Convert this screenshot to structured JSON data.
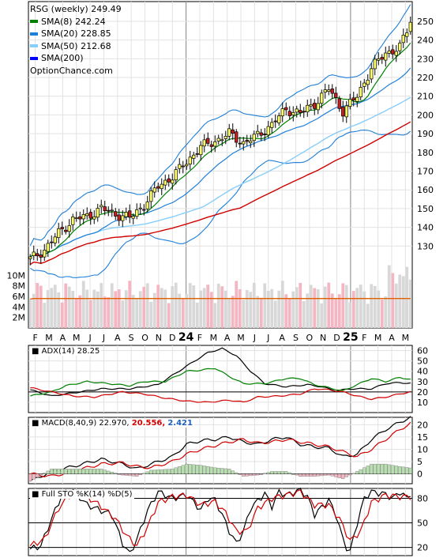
{
  "chart_data": [
    {
      "type": "candlestick",
      "title": "RSG (weekly) 249.49",
      "watermark": "OptionChance.com",
      "legend": [
        {
          "label": "SMA(8) 242.24",
          "color": "#008000"
        },
        {
          "label": "SMA(20) 228.85",
          "color": "#1e7fd8"
        },
        {
          "label": "SMA(50) 212.68",
          "color": "#87cefa"
        },
        {
          "label": "SMA(200)",
          "color": "#0000ff"
        }
      ],
      "ylim": [
        120,
        258
      ],
      "yticks": [
        130,
        140,
        150,
        160,
        170,
        180,
        190,
        200,
        210,
        220,
        230,
        240,
        250
      ],
      "x_labels": [
        "F",
        "M",
        "A",
        "M",
        "J",
        "J",
        "A",
        "S",
        "O",
        "N",
        "D",
        "24",
        "F",
        "M",
        "A",
        "M",
        "J",
        "J",
        "A",
        "S",
        "O",
        "N",
        "D",
        "25",
        "F",
        "M",
        "A",
        "M"
      ],
      "close_anchors": [
        [
          0,
          123
        ],
        [
          4,
          128
        ],
        [
          8,
          137
        ],
        [
          12,
          144
        ],
        [
          16,
          146
        ],
        [
          20,
          150
        ],
        [
          24,
          147
        ],
        [
          28,
          145
        ],
        [
          32,
          152
        ],
        [
          36,
          162
        ],
        [
          40,
          167
        ],
        [
          44,
          175
        ],
        [
          48,
          183
        ],
        [
          52,
          186
        ],
        [
          56,
          190
        ],
        [
          60,
          185
        ],
        [
          64,
          189
        ],
        [
          68,
          195
        ],
        [
          72,
          203
        ],
        [
          76,
          201
        ],
        [
          80,
          206
        ],
        [
          84,
          214
        ],
        [
          88,
          202
        ],
        [
          92,
          210
        ],
        [
          96,
          225
        ],
        [
          100,
          233
        ],
        [
          104,
          236
        ],
        [
          107,
          249.49
        ]
      ],
      "volume": {
        "yticks_label": [
          "10M",
          "8M",
          "6M",
          "4M",
          "2M"
        ],
        "yticks": [
          10,
          8,
          6,
          4,
          2
        ],
        "ylim": [
          0,
          12
        ],
        "avg_line_color": "#e06000"
      }
    },
    {
      "type": "line",
      "title": "ADX(14) 28.25",
      "ylim": [
        0,
        65
      ],
      "yticks": [
        10,
        20,
        30,
        40,
        50,
        60
      ],
      "hlines": [
        20
      ],
      "series": [
        {
          "color": "#000000",
          "anchors": [
            [
              0,
              22
            ],
            [
              6,
              16
            ],
            [
              12,
              19
            ],
            [
              20,
              23
            ],
            [
              28,
              23
            ],
            [
              36,
              27
            ],
            [
              44,
              45
            ],
            [
              50,
              58
            ],
            [
              54,
              62
            ],
            [
              58,
              55
            ],
            [
              62,
              40
            ],
            [
              66,
              28
            ],
            [
              72,
              25
            ],
            [
              78,
              27
            ],
            [
              82,
              25
            ],
            [
              86,
              21
            ],
            [
              90,
              23
            ],
            [
              96,
              23
            ],
            [
              100,
              28
            ],
            [
              104,
              29
            ],
            [
              107,
              28.25
            ]
          ]
        },
        {
          "color": "#008000",
          "anchors": [
            [
              0,
              16
            ],
            [
              6,
              20
            ],
            [
              10,
              26
            ],
            [
              16,
              30
            ],
            [
              22,
              28
            ],
            [
              28,
              26
            ],
            [
              32,
              30
            ],
            [
              38,
              30
            ],
            [
              44,
              40
            ],
            [
              48,
              41
            ],
            [
              52,
              43
            ],
            [
              56,
              35
            ],
            [
              60,
              28
            ],
            [
              66,
              28
            ],
            [
              72,
              33
            ],
            [
              76,
              33
            ],
            [
              80,
              27
            ],
            [
              84,
              24
            ],
            [
              88,
              21
            ],
            [
              92,
              27
            ],
            [
              96,
              33
            ],
            [
              100,
              30
            ],
            [
              104,
              34
            ],
            [
              107,
              32
            ]
          ]
        },
        {
          "color": "#d00000",
          "anchors": [
            [
              0,
              24
            ],
            [
              6,
              20
            ],
            [
              12,
              16
            ],
            [
              18,
              15
            ],
            [
              26,
              20
            ],
            [
              32,
              18
            ],
            [
              38,
              14
            ],
            [
              44,
              11
            ],
            [
              50,
              10
            ],
            [
              56,
              12
            ],
            [
              60,
              10
            ],
            [
              64,
              15
            ],
            [
              70,
              16
            ],
            [
              76,
              18
            ],
            [
              80,
              23
            ],
            [
              84,
              22
            ],
            [
              88,
              20
            ],
            [
              92,
              16
            ],
            [
              96,
              13
            ],
            [
              100,
              15
            ],
            [
              104,
              18
            ],
            [
              107,
              20
            ]
          ]
        }
      ]
    },
    {
      "type": "line",
      "title": "MACD(8,40,9) 22.970,",
      "signal_label": "20.556,",
      "hist_label": "2.421",
      "ylim": [
        -4,
        23
      ],
      "yticks": [
        0,
        5,
        10,
        15,
        20
      ],
      "hlines": [
        0
      ],
      "series": [
        {
          "color": "#000000",
          "anchors": [
            [
              0,
              -3
            ],
            [
              6,
              1
            ],
            [
              12,
              3
            ],
            [
              20,
              6
            ],
            [
              26,
              4
            ],
            [
              30,
              2
            ],
            [
              34,
              4
            ],
            [
              40,
              7
            ],
            [
              44,
              12
            ],
            [
              48,
              13.5
            ],
            [
              52,
              14
            ],
            [
              56,
              15
            ],
            [
              60,
              13
            ],
            [
              64,
              12
            ],
            [
              68,
              14
            ],
            [
              72,
              15
            ],
            [
              76,
              12
            ],
            [
              80,
              11
            ],
            [
              84,
              10.5
            ],
            [
              88,
              7
            ],
            [
              92,
              8
            ],
            [
              96,
              14
            ],
            [
              100,
              18
            ],
            [
              104,
              21
            ],
            [
              107,
              22.97
            ]
          ]
        },
        {
          "color": "#d00000",
          "anchors": [
            [
              0,
              0
            ],
            [
              6,
              -1
            ],
            [
              12,
              1
            ],
            [
              20,
              4
            ],
            [
              26,
              4.5
            ],
            [
              30,
              3
            ],
            [
              34,
              2.5
            ],
            [
              40,
              5
            ],
            [
              44,
              8
            ],
            [
              48,
              10
            ],
            [
              52,
              11.5
            ],
            [
              56,
              13
            ],
            [
              60,
              14
            ],
            [
              64,
              12.5
            ],
            [
              68,
              13
            ],
            [
              72,
              14
            ],
            [
              76,
              13
            ],
            [
              80,
              12
            ],
            [
              84,
              11
            ],
            [
              88,
              9
            ],
            [
              92,
              7
            ],
            [
              96,
              10
            ],
            [
              100,
              14
            ],
            [
              104,
              18
            ],
            [
              107,
              20.556
            ]
          ]
        }
      ]
    },
    {
      "type": "line",
      "title": "Full STO %K(14) %D(5)",
      "ylim": [
        10,
        92
      ],
      "yticks": [
        20,
        50,
        80
      ],
      "hlines": [
        20,
        50,
        80
      ],
      "series": [
        {
          "color": "#000000",
          "anchors": [
            [
              0,
              18
            ],
            [
              3,
              22
            ],
            [
              6,
              55
            ],
            [
              9,
              85
            ],
            [
              12,
              90
            ],
            [
              16,
              72
            ],
            [
              20,
              65
            ],
            [
              23,
              60
            ],
            [
              26,
              25
            ],
            [
              28,
              12
            ],
            [
              30,
              30
            ],
            [
              33,
              65
            ],
            [
              36,
              88
            ],
            [
              40,
              80
            ],
            [
              44,
              84
            ],
            [
              48,
              66
            ],
            [
              50,
              80
            ],
            [
              52,
              78
            ],
            [
              54,
              60
            ],
            [
              56,
              40
            ],
            [
              58,
              25
            ],
            [
              60,
              40
            ],
            [
              62,
              68
            ],
            [
              66,
              86
            ],
            [
              68,
              70
            ],
            [
              70,
              88
            ],
            [
              72,
              84
            ],
            [
              76,
              90
            ],
            [
              78,
              82
            ],
            [
              80,
              60
            ],
            [
              84,
              78
            ],
            [
              86,
              60
            ],
            [
              88,
              30
            ],
            [
              89,
              20
            ],
            [
              90,
              15
            ],
            [
              92,
              50
            ],
            [
              94,
              80
            ],
            [
              96,
              88
            ],
            [
              100,
              85
            ],
            [
              102,
              80
            ],
            [
              104,
              88
            ],
            [
              106,
              80
            ],
            [
              107,
              86
            ]
          ]
        },
        {
          "color": "#d00000",
          "anchors": [
            [
              0,
              22
            ],
            [
              4,
              30
            ],
            [
              8,
              68
            ],
            [
              12,
              88
            ],
            [
              16,
              82
            ],
            [
              20,
              70
            ],
            [
              24,
              55
            ],
            [
              27,
              35
            ],
            [
              30,
              22
            ],
            [
              33,
              45
            ],
            [
              36,
              75
            ],
            [
              40,
              82
            ],
            [
              44,
              84
            ],
            [
              48,
              72
            ],
            [
              52,
              76
            ],
            [
              55,
              62
            ],
            [
              58,
              40
            ],
            [
              61,
              40
            ],
            [
              64,
              68
            ],
            [
              68,
              80
            ],
            [
              72,
              84
            ],
            [
              76,
              88
            ],
            [
              80,
              72
            ],
            [
              84,
              72
            ],
            [
              87,
              55
            ],
            [
              90,
              28
            ],
            [
              93,
              40
            ],
            [
              96,
              75
            ],
            [
              100,
              84
            ],
            [
              104,
              82
            ],
            [
              107,
              82
            ]
          ]
        }
      ]
    }
  ]
}
